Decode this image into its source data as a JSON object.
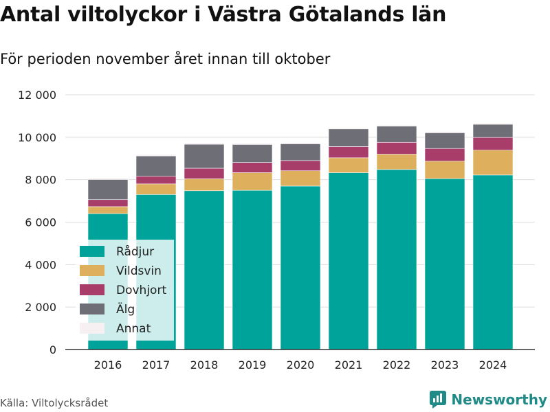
{
  "header": {
    "title": "Antal viltolyckor i Västra Götalands län",
    "subtitle": "För perioden november året innan till oktober"
  },
  "footer": {
    "source": "Källa: Viltolycksrådet",
    "brand": "Newsworthy",
    "brand_icon": "newsworthy-logo-icon"
  },
  "colors": {
    "Rådjur": "#00a39a",
    "Vildsvin": "#deaf5c",
    "Dovhjort": "#a83d6a",
    "Älg": "#6e6e76",
    "Annat": "#f6f0f2",
    "grid": "#dddddd",
    "axis": "#333333",
    "legend_bg": "rgba(255,255,255,0.8)"
  },
  "chart_data": {
    "type": "bar",
    "stacked": true,
    "categories": [
      "2016",
      "2017",
      "2018",
      "2019",
      "2020",
      "2021",
      "2022",
      "2023",
      "2024"
    ],
    "series": [
      {
        "name": "Rådjur",
        "values": [
          6400,
          7300,
          7480,
          7500,
          7700,
          8330,
          8480,
          8050,
          8220
        ]
      },
      {
        "name": "Vildsvin",
        "values": [
          330,
          500,
          560,
          830,
          720,
          700,
          720,
          820,
          1170
        ]
      },
      {
        "name": "Dovhjort",
        "values": [
          330,
          360,
          500,
          480,
          480,
          530,
          560,
          600,
          600
        ]
      },
      {
        "name": "Älg",
        "values": [
          950,
          960,
          1130,
          850,
          790,
          830,
          760,
          740,
          620
        ]
      },
      {
        "name": "Annat",
        "values": [
          70,
          70,
          70,
          60,
          60,
          60,
          60,
          60,
          60
        ]
      }
    ],
    "y_ticks": [
      {
        "value": 0,
        "label": "0"
      },
      {
        "value": 2000,
        "label": "2 000"
      },
      {
        "value": 4000,
        "label": "4 000"
      },
      {
        "value": 6000,
        "label": "6 000"
      },
      {
        "value": 8000,
        "label": "8 000"
      },
      {
        "value": 10000,
        "label": "10 000"
      },
      {
        "value": 12000,
        "label": "12 000"
      }
    ],
    "ylim": [
      0,
      12000
    ],
    "grid": true,
    "legend_placement": "bottom-left"
  }
}
